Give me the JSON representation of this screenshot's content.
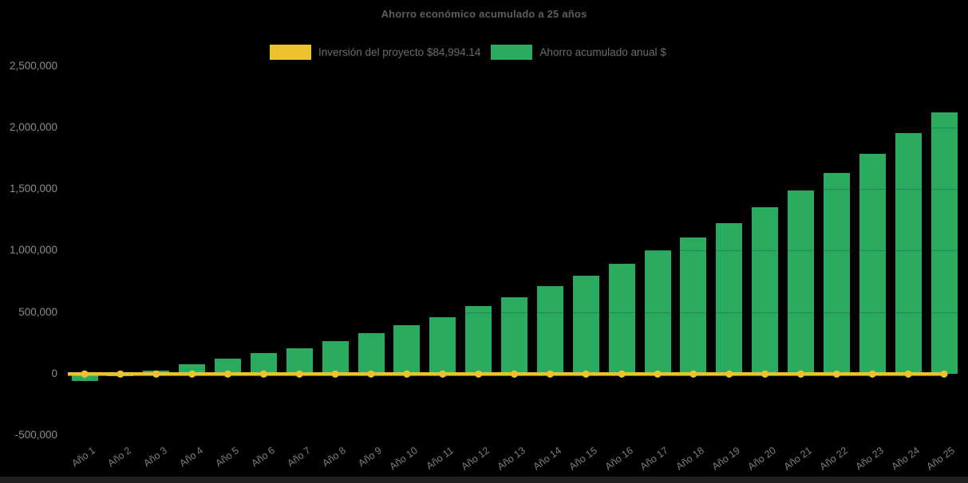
{
  "page": {
    "background": "#000000",
    "footer_bar_color": "#212121"
  },
  "chart_data": {
    "type": "bar",
    "title": "Ahorro económico acumulado a 25 años",
    "title_color": "#5e5e5e",
    "legend_position": "top",
    "grid": "subtle dark overlay lines at 500,000 steps",
    "categories": [
      "Año 1",
      "Año 2",
      "Año 3",
      "Año 4",
      "Año 5",
      "Año 6",
      "Año 7",
      "Año 8",
      "Año 9",
      "Año 10",
      "Año 11",
      "Año 12",
      "Año 13",
      "Año 14",
      "Año 15",
      "Año 16",
      "Año 17",
      "Año 18",
      "Año 19",
      "Año 20",
      "Año 21",
      "Año 22",
      "Año 23",
      "Año 24",
      "Año 25"
    ],
    "series": [
      {
        "name": "Inversión del proyecto $84,994.14",
        "type": "line",
        "color": "#ecc32e",
        "investment_value": 84994.14,
        "rendered_at_y_value": 0,
        "markers": "circle"
      },
      {
        "name": "Ahorro acumulado anual $",
        "type": "bar",
        "color": "#2bab60",
        "values": [
          -62000,
          -19000,
          24000,
          74000,
          121000,
          165000,
          208000,
          266000,
          331000,
          392000,
          460000,
          547000,
          620000,
          709000,
          795000,
          894000,
          1000000,
          1104000,
          1222000,
          1352000,
          1488000,
          1628000,
          1784000,
          1954000,
          2124000
        ]
      }
    ],
    "ylim": [
      -500000,
      2500000
    ],
    "yticks": {
      "values": [
        2500000,
        2000000,
        1500000,
        1000000,
        500000,
        0,
        -500000
      ],
      "labels": [
        "2,500,000",
        "2,000,000",
        "1,500,000",
        "1,000,000",
        "500,000",
        "0",
        "-500,000"
      ]
    },
    "axis_label_color": "#8b8b8b",
    "xlabel": "",
    "ylabel": ""
  }
}
